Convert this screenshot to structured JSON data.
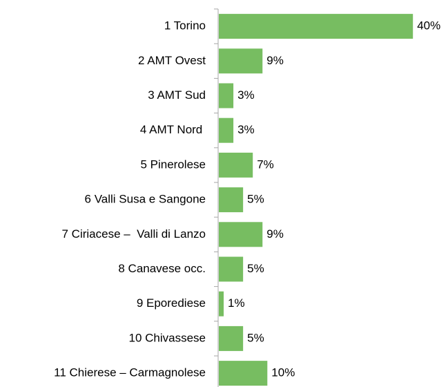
{
  "chart_data": {
    "type": "bar",
    "orientation": "horizontal",
    "categories": [
      "1 Torino",
      "2 AMT Ovest",
      "3 AMT Sud",
      "4 AMT Nord ",
      "5 Pinerolese",
      "6 Valli Susa e Sangone",
      "7 Ciriacese –  Valli di Lanzo",
      "8 Canavese occ.",
      "9 Eporediese",
      "10 Chivassese",
      "11 Chierese – Carmagnolese"
    ],
    "values": [
      40,
      9,
      3,
      3,
      7,
      5,
      9,
      5,
      1,
      5,
      10
    ],
    "value_labels": [
      "40%",
      "9%",
      "3%",
      "3%",
      "7%",
      "5%",
      "9%",
      "5%",
      "1%",
      "5%",
      "10%"
    ],
    "color": "#77bd61"
  }
}
